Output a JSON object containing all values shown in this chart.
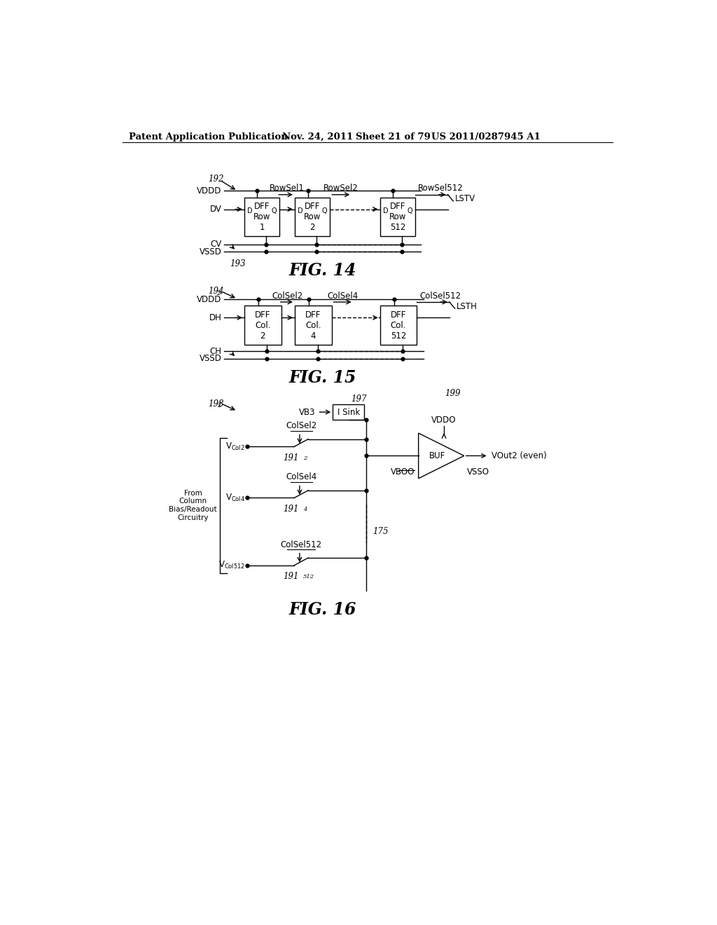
{
  "bg_color": "#ffffff",
  "header_text": "Patent Application Publication",
  "header_date": "Nov. 24, 2011",
  "header_sheet": "Sheet 21 of 79",
  "header_patent": "US 2011/0287945 A1",
  "fig14_label": "FIG. 14",
  "fig15_label": "FIG. 15",
  "fig16_label": "FIG. 16"
}
